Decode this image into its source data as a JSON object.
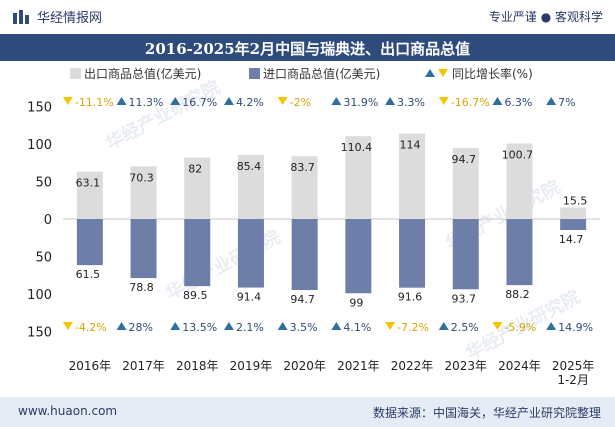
{
  "header": {
    "brand": "华经情报网",
    "tagline": "专业严谨 ● 客观科学"
  },
  "footer": {
    "website": "www.huaon.com",
    "source": "数据来源：中国海关，华经产业研究院整理"
  },
  "watermark": "华经产业研究院",
  "colors": {
    "export_bar": "#dcdcdc",
    "import_bar": "#6d7fa9",
    "up_marker": "#2f6f9f",
    "down_marker": "#f5c400",
    "banner": "#2f4b7c"
  },
  "chart_data": {
    "type": "bar",
    "title": "2016-2025年2月中国与瑞典进、出口商品总值",
    "categories": [
      "2016年",
      "2017年",
      "2018年",
      "2019年",
      "2020年",
      "2021年",
      "2022年",
      "2023年",
      "2024年",
      "2025年\n1-2月"
    ],
    "y_ticks": [
      "150",
      "100",
      "50",
      "0",
      "50",
      "100",
      "150"
    ],
    "ylim": [
      -150,
      150
    ],
    "legend": {
      "export": "出口商品总值(亿美元)",
      "import": "进口商品总值(亿美元)",
      "growth": "同比增长率(%)",
      "placement": "top"
    },
    "series": [
      {
        "name": "出口商品总值(亿美元)",
        "values": [
          63.1,
          70.3,
          82,
          85.4,
          83.7,
          110.4,
          114,
          94.7,
          100.7,
          15.5
        ],
        "growth_labels": [
          "-11.1%",
          "11.3%",
          "16.7%",
          "4.2%",
          "-2%",
          "31.9%",
          "3.3%",
          "-16.7%",
          "6.3%",
          "7%"
        ],
        "growth_dirs": [
          "down",
          "up",
          "up",
          "up",
          "down",
          "up",
          "up",
          "down",
          "up",
          "up"
        ]
      },
      {
        "name": "进口商品总值(亿美元)",
        "values": [
          61.5,
          78.8,
          89.5,
          91.4,
          94.7,
          99,
          91.6,
          93.7,
          88.2,
          14.7
        ],
        "growth_labels": [
          "-4.2%",
          "28%",
          "13.5%",
          "2.1%",
          "3.5%",
          "4.1%",
          "-7.2%",
          "2.5%",
          "-5.9%",
          "14.9%"
        ],
        "growth_dirs": [
          "down",
          "up",
          "up",
          "up",
          "up",
          "up",
          "down",
          "up",
          "down",
          "up"
        ]
      }
    ]
  }
}
